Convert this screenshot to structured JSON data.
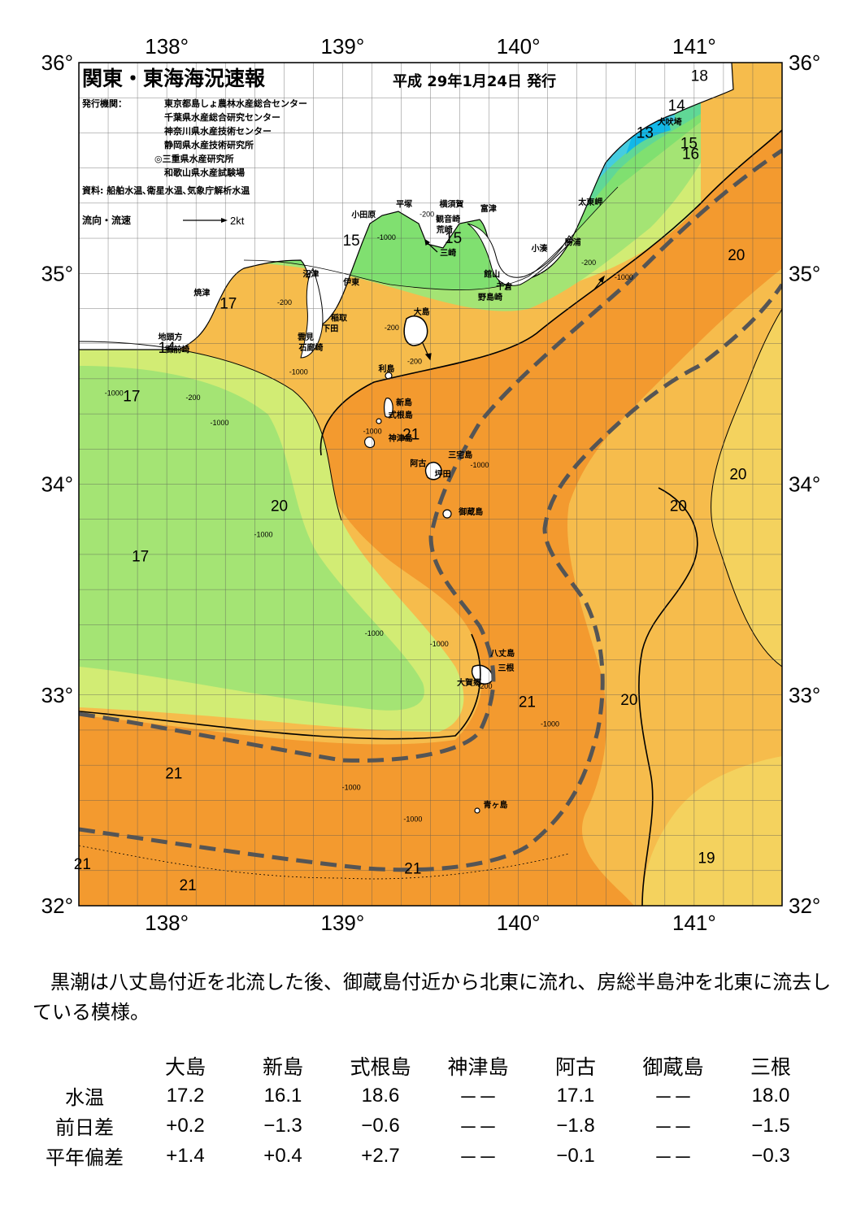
{
  "title": "関東・東海海況速報",
  "issue_date": "平成 29年1月24日 発行",
  "publisher_label": "発行機関：",
  "publishers": [
    "東京都島しょ農林水産総合センター",
    "千葉県水産総合研究センター",
    "神奈川県水産技術センター",
    "静岡県水産技術研究所",
    "◎三重県水産研究所",
    "和歌山県水産試験場"
  ],
  "sources": "資料: 船舶水温､衛星水温､気象庁解析水温",
  "flow_legend": {
    "label": "流向・流速",
    "speed": "2kt"
  },
  "axes": {
    "lon_labels": [
      "138°",
      "139°",
      "140°",
      "141°"
    ],
    "lat_labels": [
      "36°",
      "35°",
      "34°",
      "33°",
      "32°"
    ],
    "lon_range": [
      137.5,
      141.5
    ],
    "lat_range": [
      32.0,
      36.0
    ]
  },
  "place_names": [
    {
      "name": "犬吠埼",
      "lon": 140.86,
      "lat": 35.72
    },
    {
      "name": "富津",
      "lon": 139.83,
      "lat": 35.31
    },
    {
      "name": "太東岬",
      "lon": 140.41,
      "lat": 35.34
    },
    {
      "name": "勝浦",
      "lon": 140.31,
      "lat": 35.15
    },
    {
      "name": "小湊",
      "lon": 140.12,
      "lat": 35.12
    },
    {
      "name": "館山",
      "lon": 139.85,
      "lat": 35.0
    },
    {
      "name": "千倉",
      "lon": 139.92,
      "lat": 34.94
    },
    {
      "name": "野島崎",
      "lon": 139.84,
      "lat": 34.89
    },
    {
      "name": "平塚",
      "lon": 139.35,
      "lat": 35.33
    },
    {
      "name": "横須賀",
      "lon": 139.62,
      "lat": 35.33
    },
    {
      "name": "観音崎",
      "lon": 139.6,
      "lat": 35.26
    },
    {
      "name": "荒崎",
      "lon": 139.58,
      "lat": 35.21
    },
    {
      "name": "三崎",
      "lon": 139.6,
      "lat": 35.1
    },
    {
      "name": "小田原",
      "lon": 139.12,
      "lat": 35.28
    },
    {
      "name": "沼津",
      "lon": 138.82,
      "lat": 35.0
    },
    {
      "name": "伊東",
      "lon": 139.05,
      "lat": 34.96
    },
    {
      "name": "焼津",
      "lon": 138.2,
      "lat": 34.91
    },
    {
      "name": "稲取",
      "lon": 138.98,
      "lat": 34.79
    },
    {
      "name": "下田",
      "lon": 138.93,
      "lat": 34.74
    },
    {
      "name": "雲見",
      "lon": 138.79,
      "lat": 34.7
    },
    {
      "name": "石廊崎",
      "lon": 138.82,
      "lat": 34.65
    },
    {
      "name": "地頭方",
      "lon": 138.02,
      "lat": 34.7
    },
    {
      "name": "御前崎",
      "lon": 138.06,
      "lat": 34.64
    },
    {
      "name": "大島",
      "lon": 139.45,
      "lat": 34.82
    },
    {
      "name": "利島",
      "lon": 139.25,
      "lat": 34.55
    },
    {
      "name": "新島",
      "lon": 139.35,
      "lat": 34.39
    },
    {
      "name": "式根島",
      "lon": 139.33,
      "lat": 34.33
    },
    {
      "name": "神津島",
      "lon": 139.33,
      "lat": 34.22
    },
    {
      "name": "三宅島",
      "lon": 139.67,
      "lat": 34.14
    },
    {
      "name": "阿古",
      "lon": 139.43,
      "lat": 34.1
    },
    {
      "name": "坪田",
      "lon": 139.57,
      "lat": 34.05
    },
    {
      "name": "御蔵島",
      "lon": 139.73,
      "lat": 33.87
    },
    {
      "name": "八丈島",
      "lon": 139.91,
      "lat": 33.2
    },
    {
      "name": "三根",
      "lon": 139.93,
      "lat": 33.13
    },
    {
      "name": "大賀郷",
      "lon": 139.72,
      "lat": 33.06
    },
    {
      "name": "青ヶ島",
      "lon": 139.87,
      "lat": 32.48
    }
  ],
  "isotherm_labels": [
    {
      "text": "18",
      "lon": 141.03,
      "lat": 35.94
    },
    {
      "text": "14",
      "lon": 140.9,
      "lat": 35.8
    },
    {
      "text": "13",
      "lon": 140.72,
      "lat": 35.67
    },
    {
      "text": "15",
      "lon": 140.97,
      "lat": 35.62
    },
    {
      "text": "16",
      "lon": 140.98,
      "lat": 35.57
    },
    {
      "text": "15",
      "lon": 139.05,
      "lat": 35.16
    },
    {
      "text": "15",
      "lon": 139.63,
      "lat": 35.17
    },
    {
      "text": "20",
      "lon": 141.24,
      "lat": 35.09
    },
    {
      "text": "17",
      "lon": 138.35,
      "lat": 34.86
    },
    {
      "text": "14",
      "lon": 138.0,
      "lat": 34.65
    },
    {
      "text": "17",
      "lon": 137.8,
      "lat": 34.42
    },
    {
      "text": "21",
      "lon": 139.39,
      "lat": 34.24
    },
    {
      "text": "20",
      "lon": 141.25,
      "lat": 34.05
    },
    {
      "text": "20",
      "lon": 138.64,
      "lat": 33.9
    },
    {
      "text": "20",
      "lon": 140.91,
      "lat": 33.9
    },
    {
      "text": "17",
      "lon": 137.85,
      "lat": 33.66
    },
    {
      "text": "21",
      "lon": 140.05,
      "lat": 32.97
    },
    {
      "text": "20",
      "lon": 140.63,
      "lat": 32.98
    },
    {
      "text": "21",
      "lon": 138.04,
      "lat": 32.63
    },
    {
      "text": "19",
      "lon": 141.07,
      "lat": 32.23
    },
    {
      "text": "21",
      "lon": 139.4,
      "lat": 32.18
    },
    {
      "text": "21",
      "lon": 137.52,
      "lat": 32.2
    },
    {
      "text": "21",
      "lon": 138.12,
      "lat": 32.1
    }
  ],
  "depth_labels": [
    {
      "text": "-200",
      "lon": 139.48,
      "lat": 35.27
    },
    {
      "text": "-1000",
      "lon": 139.25,
      "lat": 35.16
    },
    {
      "text": "-200",
      "lon": 140.4,
      "lat": 35.04
    },
    {
      "text": "-1000",
      "lon": 140.6,
      "lat": 34.97
    },
    {
      "text": "-200",
      "lon": 138.67,
      "lat": 34.85
    },
    {
      "text": "-200",
      "lon": 139.28,
      "lat": 34.73
    },
    {
      "text": "-200",
      "lon": 139.41,
      "lat": 34.57
    },
    {
      "text": "-1000",
      "lon": 138.75,
      "lat": 34.52
    },
    {
      "text": "-200",
      "lon": 138.15,
      "lat": 34.4
    },
    {
      "text": "-1000",
      "lon": 137.7,
      "lat": 34.42
    },
    {
      "text": "-1000",
      "lon": 138.3,
      "lat": 34.28
    },
    {
      "text": "-1000",
      "lon": 139.17,
      "lat": 34.24
    },
    {
      "text": "-1000",
      "lon": 139.78,
      "lat": 34.08
    },
    {
      "text": "-1000",
      "lon": 138.55,
      "lat": 33.75
    },
    {
      "text": "-1000",
      "lon": 139.18,
      "lat": 33.28
    },
    {
      "text": "-1000",
      "lon": 139.55,
      "lat": 33.23
    },
    {
      "text": "-200",
      "lon": 139.81,
      "lat": 33.03
    },
    {
      "text": "-1000",
      "lon": 140.18,
      "lat": 32.85
    },
    {
      "text": "-1000",
      "lon": 139.05,
      "lat": 32.55
    },
    {
      "text": "-1000",
      "lon": 139.4,
      "lat": 32.4
    }
  ],
  "summary": "黒潮は八丈島付近を北流した後、御蔵島付近から北東に流れ、房総半島沖を北東に流去している模様。",
  "temp_table": {
    "stations": [
      "大島",
      "新島",
      "式根島",
      "神津島",
      "阿古",
      "御蔵島",
      "三根"
    ],
    "rows": [
      {
        "label": "水温",
        "values": [
          "17.2",
          "16.1",
          "18.6",
          "－－",
          "17.1",
          "－－",
          "18.0"
        ]
      },
      {
        "label": "前日差",
        "values": [
          "+0.2",
          "−1.3",
          "−0.6",
          "－－",
          "−1.8",
          "－－",
          "−1.5"
        ]
      },
      {
        "label": "平年偏差",
        "values": [
          "+1.4",
          "+0.4",
          "+2.7",
          "－－",
          "−0.1",
          "－－",
          "−0.3"
        ]
      }
    ]
  },
  "colors": {
    "temp_13": "#12b8e8",
    "temp_14": "#45cce0",
    "temp_15": "#60d896",
    "temp_16": "#80e070",
    "temp_17": "#a4e474",
    "temp_18": "#d2ec74",
    "temp_19": "#f4e46a",
    "temp_20": "#f6bc4c",
    "temp_21": "#f39a2f",
    "land": "#ffffff",
    "kuroshio_axis": "#555555"
  }
}
